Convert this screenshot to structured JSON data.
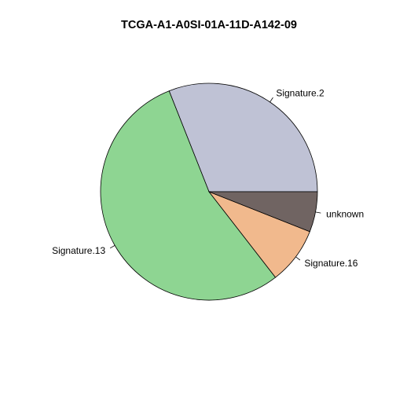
{
  "chart_data": {
    "type": "pie",
    "title": "TCGA-A1-A0SI-01A-11D-A142-09",
    "slices": [
      {
        "label": "Signature.2",
        "value": 0.31,
        "color": "#BFC2D5"
      },
      {
        "label": "Signature.13",
        "value": 0.545,
        "color": "#8ED592"
      },
      {
        "label": "Signature.16",
        "value": 0.085,
        "color": "#F1B98D"
      },
      {
        "label": "unknown",
        "value": 0.06,
        "color": "#706462"
      }
    ],
    "start_angle_deg": 0,
    "direction": "counterclockwise"
  }
}
